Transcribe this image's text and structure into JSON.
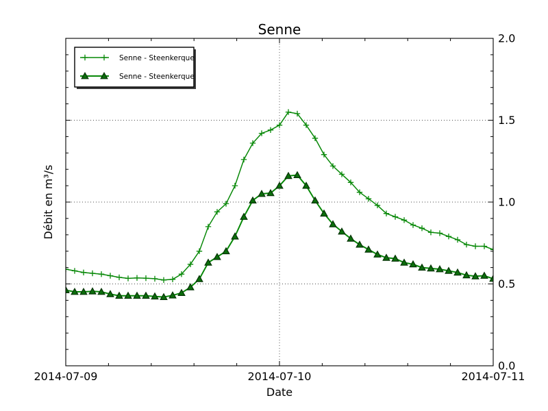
{
  "chart_data": {
    "type": "line",
    "title": "Senne",
    "xlabel": "Date",
    "ylabel": "Débit en m³/s",
    "ylim": [
      0.0,
      2.0
    ],
    "xlim_hours": [
      0,
      48
    ],
    "x_tick_labels": [
      "2014-07-09",
      "2014-07-10",
      "2014-07-11"
    ],
    "x_major_tick_hours": [
      0,
      24,
      48
    ],
    "x_minor_tick_interval_hours": 4.8,
    "y_major_ticks": [
      0.0,
      0.5,
      1.0,
      1.5,
      2.0
    ],
    "y_tick_labels": [
      "0.0",
      "0.5",
      "1.0",
      "1.5",
      "2.0"
    ],
    "y_minor_tick_interval": 0.1,
    "grid": {
      "style": "dotted",
      "horizontal_at": [
        0.5,
        1.0,
        1.5
      ],
      "vertical_at_hours": [
        24
      ]
    },
    "x_hours": [
      0,
      1,
      2,
      3,
      4,
      5,
      6,
      7,
      8,
      9,
      10,
      11,
      12,
      13,
      14,
      15,
      16,
      17,
      18,
      19,
      20,
      21,
      22,
      23,
      24,
      25,
      26,
      27,
      28,
      29,
      30,
      31,
      32,
      33,
      34,
      35,
      36,
      37,
      38,
      39,
      40,
      41,
      42,
      43,
      44,
      45,
      46,
      47,
      48
    ],
    "series": [
      {
        "name": "Senne - Steenkerque",
        "marker": "plus",
        "line_color": "#078807",
        "line_width": 1.5,
        "values": [
          0.59,
          0.58,
          0.57,
          0.565,
          0.56,
          0.55,
          0.54,
          0.534,
          0.537,
          0.535,
          0.532,
          0.524,
          0.528,
          0.56,
          0.62,
          0.7,
          0.85,
          0.94,
          0.99,
          1.1,
          1.26,
          1.36,
          1.42,
          1.44,
          1.47,
          1.55,
          1.54,
          1.47,
          1.39,
          1.29,
          1.22,
          1.17,
          1.12,
          1.06,
          1.02,
          0.98,
          0.93,
          0.91,
          0.89,
          0.86,
          0.84,
          0.815,
          0.81,
          0.79,
          0.77,
          0.74,
          0.73,
          0.73,
          0.71
        ]
      },
      {
        "name": "Senne - Steenkerque",
        "marker": "triangle",
        "line_color": "#078807",
        "line_width": 2.0,
        "marker_fill": "#0c6e0c",
        "marker_edge": "#053305",
        "values": [
          0.462,
          0.452,
          0.452,
          0.455,
          0.452,
          0.438,
          0.428,
          0.428,
          0.428,
          0.428,
          0.424,
          0.42,
          0.43,
          0.445,
          0.48,
          0.53,
          0.63,
          0.665,
          0.7,
          0.79,
          0.91,
          1.01,
          1.05,
          1.055,
          1.1,
          1.16,
          1.165,
          1.1,
          1.01,
          0.93,
          0.865,
          0.82,
          0.777,
          0.74,
          0.71,
          0.68,
          0.66,
          0.655,
          0.63,
          0.62,
          0.6,
          0.595,
          0.59,
          0.58,
          0.57,
          0.553,
          0.547,
          0.55,
          0.532
        ]
      }
    ],
    "legend": {
      "position": "upper-left",
      "shadow": true,
      "entries": [
        "Senne - Steenkerque",
        "Senne - Steenkerque"
      ]
    }
  }
}
